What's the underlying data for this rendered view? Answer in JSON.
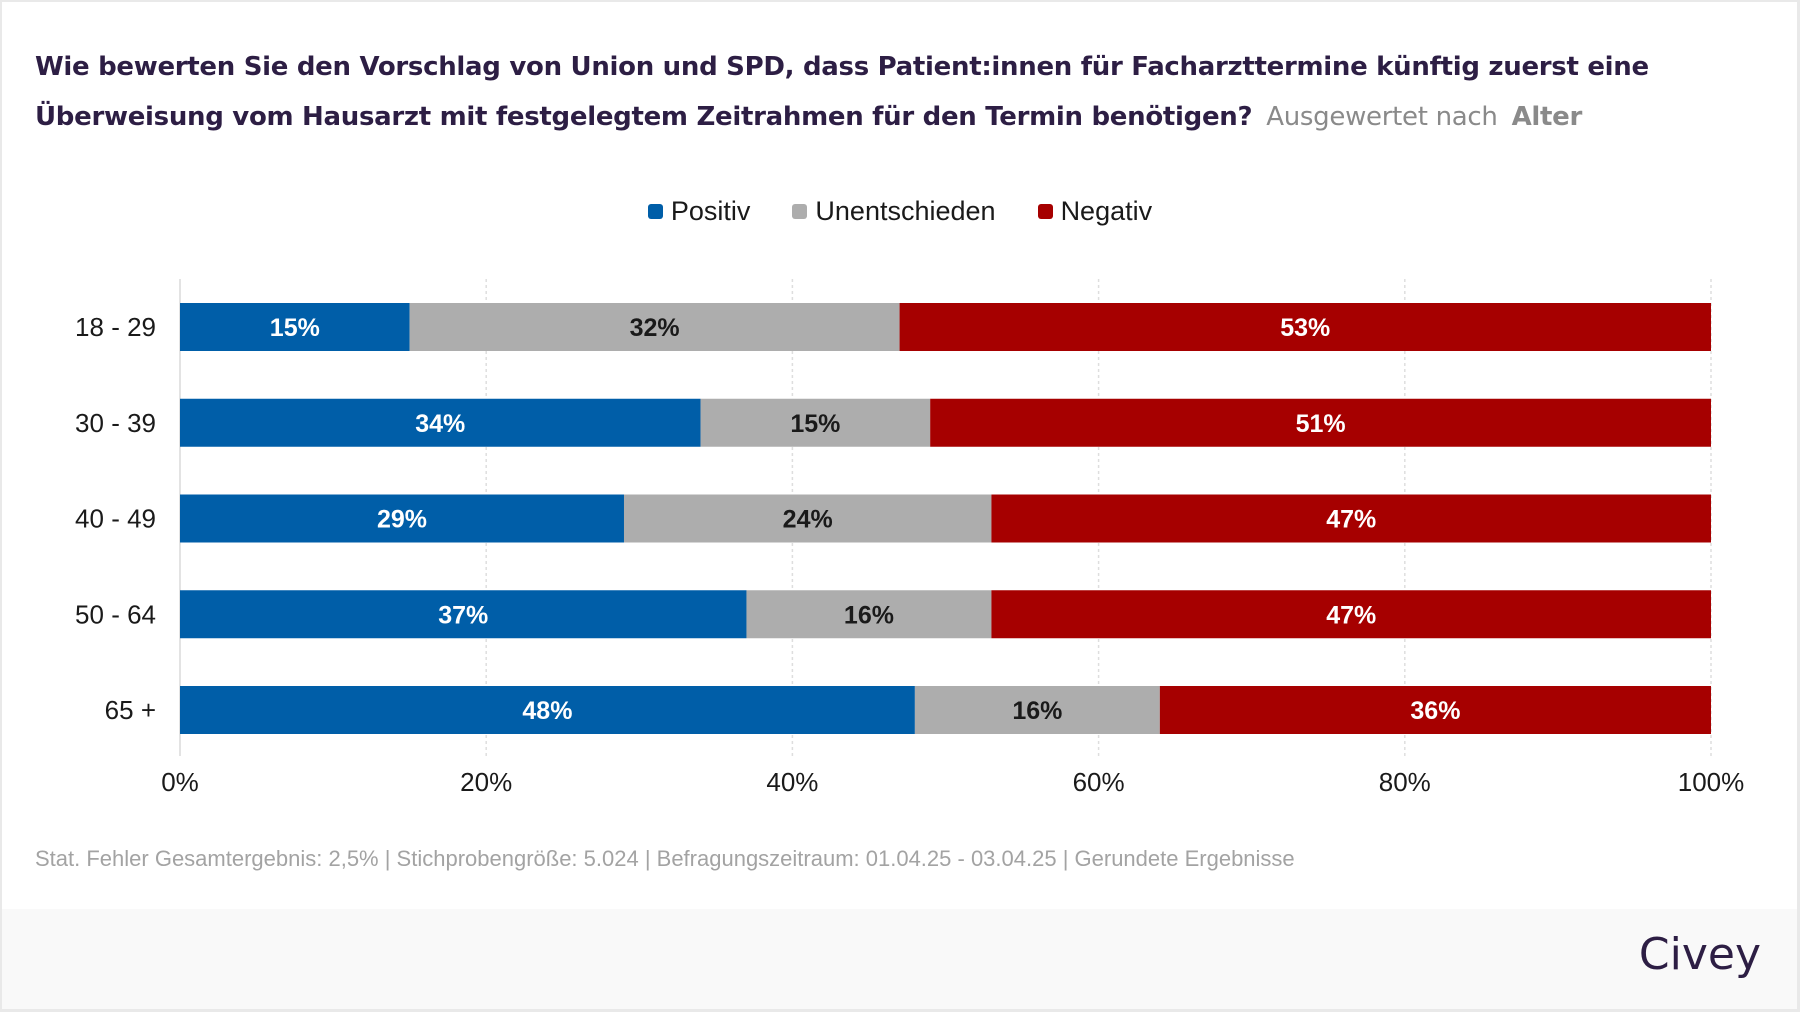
{
  "header": {
    "question": "Wie bewerten Sie den Vorschlag von Union und SPD, dass Patient:innen für Facharzttermine künftig zuerst eine Überweisung vom Hausarzt mit festgelegtem Zeitrahmen für den Termin benötigen?",
    "evaluated_by_label": "Ausgewertet nach",
    "evaluated_by_value": "Alter"
  },
  "chart_data": {
    "type": "bar",
    "orientation": "horizontal",
    "stacked": true,
    "title": "Wie bewerten Sie den Vorschlag von Union und SPD, dass Patient:innen für Facharzttermine künftig zuerst eine Überweisung vom Hausarzt mit festgelegtem Zeitrahmen für den Termin benötigen?",
    "categories": [
      "18 - 29",
      "30 - 39",
      "40 - 49",
      "50 - 64",
      "65 +"
    ],
    "series": [
      {
        "name": "Positiv",
        "color": "#005ea8",
        "label_color": "#ffffff",
        "values": [
          15,
          34,
          29,
          37,
          48
        ]
      },
      {
        "name": "Unentschieden",
        "color": "#adadad",
        "label_color": "#1a1a1a",
        "values": [
          32,
          15,
          24,
          16,
          16
        ]
      },
      {
        "name": "Negativ",
        "color": "#a60000",
        "label_color": "#ffffff",
        "values": [
          53,
          51,
          47,
          47,
          36
        ]
      }
    ],
    "xlim": [
      0,
      100
    ],
    "xticks": [
      0,
      20,
      40,
      60,
      80,
      100
    ],
    "xtick_labels": [
      "0%",
      "20%",
      "40%",
      "60%",
      "80%",
      "100%"
    ],
    "value_suffix": "%",
    "xlabel": "",
    "ylabel": "",
    "grid": "vertical dotted",
    "legend_position": "top-center"
  },
  "footnote": "Stat. Fehler Gesamtergebnis: 2,5% | Stichprobengröße: 5.024 | Befragungszeitraum: 01.04.25 - 03.04.25 | Gerundete Ergebnisse",
  "brand": {
    "logo_text": "Civey",
    "color": "#2d1e44"
  }
}
